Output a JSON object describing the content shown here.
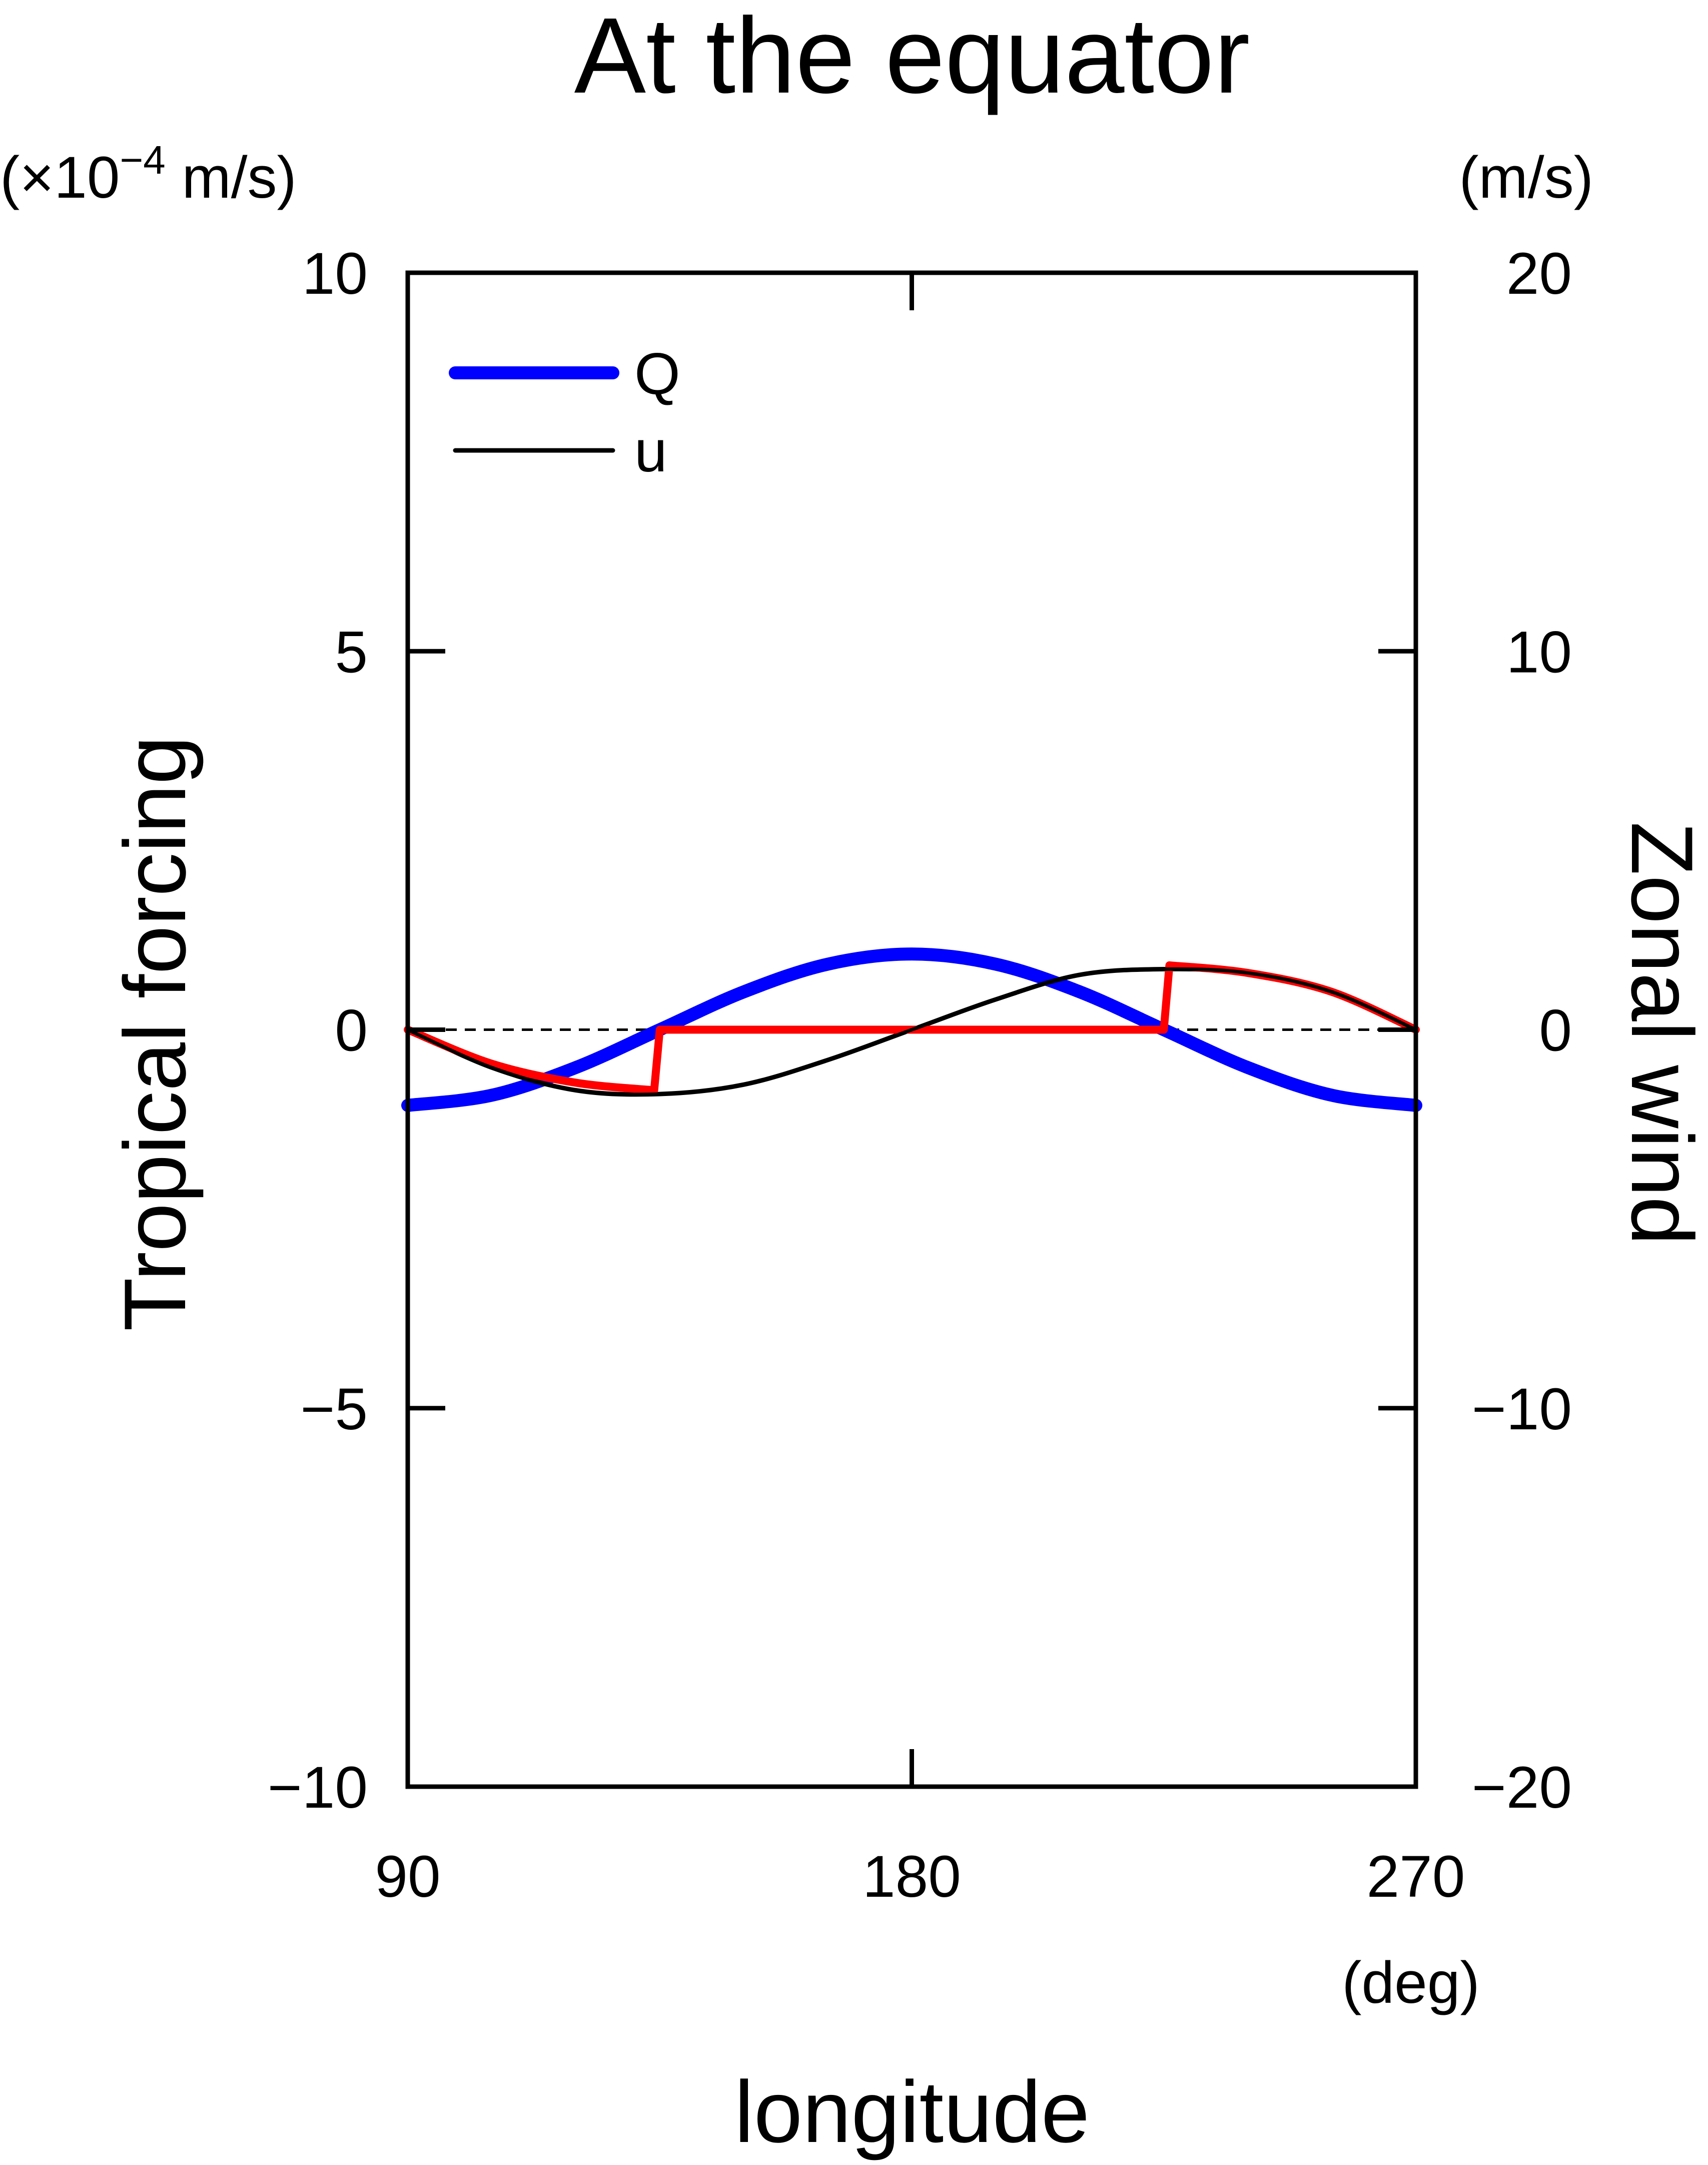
{
  "chart_data": {
    "type": "line",
    "title": "At the equator",
    "xlabel": "longitude",
    "xunit": "(deg)",
    "xlim": [
      90,
      270
    ],
    "xticks": [
      90,
      180,
      270
    ],
    "xtick_labels": [
      "90",
      "180",
      "270"
    ],
    "y_left": {
      "label": "Tropical forcing",
      "unit_prefix": "(×10",
      "unit_exponent": "−4",
      "unit_suffix": " m/s)",
      "lim": [
        -10,
        10
      ],
      "ticks": [
        -10,
        -5,
        0,
        5,
        10
      ],
      "tick_labels": [
        "−10",
        "−5",
        "0",
        "5",
        "10"
      ]
    },
    "y_right": {
      "label": "Zonal wind",
      "unit": "(m/s)",
      "lim": [
        -20,
        20
      ],
      "ticks": [
        -20,
        -10,
        0,
        10,
        20
      ],
      "tick_labels": [
        "−20",
        "−10",
        "0",
        "10",
        "20"
      ]
    },
    "legend": {
      "placement": "top-left",
      "entries": [
        {
          "label": "Q",
          "color": "#0000ff"
        },
        {
          "label": "u",
          "color": "#000000"
        }
      ]
    },
    "zero_line": {
      "style": "dashed",
      "y": 0
    },
    "series": [
      {
        "name": "Q",
        "axis": "left",
        "color": "#0000ff",
        "x": [
          90,
          105,
          120,
          135,
          150,
          165,
          180,
          195,
          210,
          225,
          240,
          255,
          270
        ],
        "y": [
          -1.0,
          -0.866,
          -0.5,
          0.0,
          0.5,
          0.866,
          1.0,
          0.866,
          0.5,
          0.0,
          -0.5,
          -0.866,
          -1.0
        ]
      },
      {
        "name": "u",
        "axis": "right",
        "color": "#000000",
        "x": [
          90,
          105,
          120,
          135,
          150,
          165,
          180,
          195,
          210,
          225,
          240,
          255,
          270
        ],
        "y": [
          0.0,
          -1.0,
          -1.6,
          -1.7,
          -1.45,
          -0.8,
          0.0,
          0.8,
          1.45,
          1.6,
          1.5,
          1.0,
          0.0
        ]
      },
      {
        "axis": "right",
        "color": "#ff0000",
        "x": [
          90,
          105,
          120,
          134,
          135,
          225,
          226,
          240,
          255,
          270
        ],
        "y": [
          0.0,
          -0.9,
          -1.4,
          -1.6,
          0.0,
          0.0,
          1.7,
          1.5,
          1.0,
          0.0
        ]
      }
    ]
  }
}
